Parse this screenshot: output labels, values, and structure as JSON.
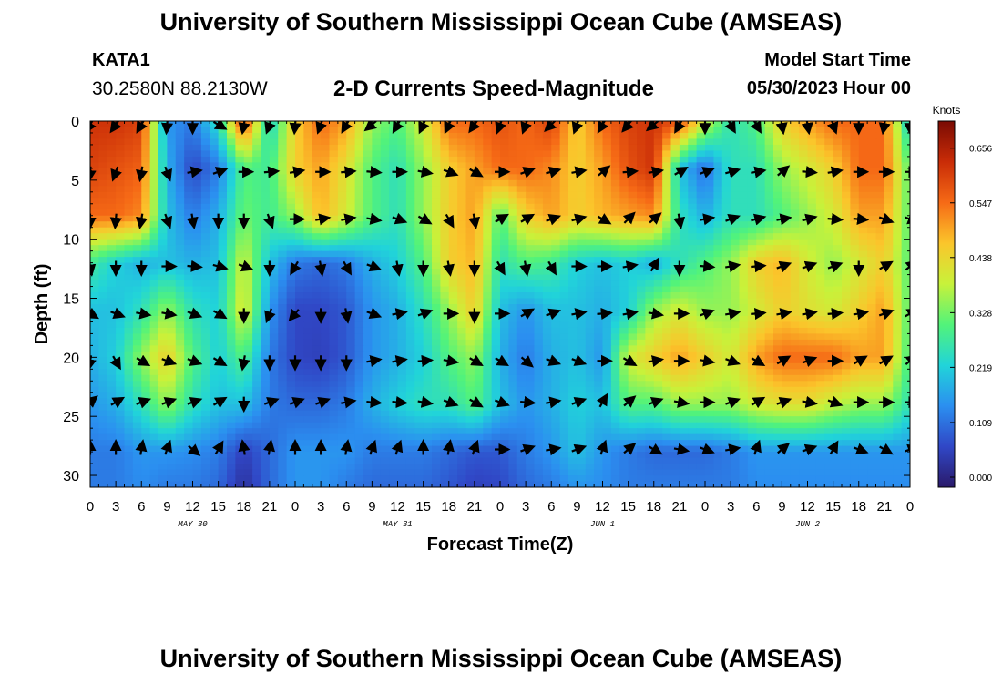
{
  "header": {
    "title": "University of Southern Mississippi Ocean Cube (AMSEAS)",
    "station_id": "KATA1",
    "coordinates": "30.2580N  88.2130W",
    "subtitle": "2-D Currents Speed-Magnitude",
    "model_start_label": "Model Start Time",
    "model_start_value": "05/30/2023 Hour 00"
  },
  "footer": {
    "title": "University of Southern Mississippi Ocean Cube (AMSEAS)"
  },
  "chart_data": {
    "type": "heatmap",
    "title": "2-D Currents Speed-Magnitude",
    "xlabel": "Forecast Time(Z)",
    "ylabel": "Depth (ft)",
    "xlim": [
      0,
      96
    ],
    "ylim": [
      0,
      31
    ],
    "x_tick_values": [
      0,
      3,
      6,
      9,
      12,
      15,
      18,
      21,
      24,
      27,
      30,
      33,
      36,
      39,
      42,
      45,
      48,
      51,
      54,
      57,
      60,
      63,
      66,
      69,
      72,
      75,
      78,
      81,
      84,
      87,
      90,
      93,
      96
    ],
    "x_tick_labels": [
      "0",
      "3",
      "6",
      "9",
      "12",
      "15",
      "18",
      "21",
      "0",
      "3",
      "6",
      "9",
      "12",
      "15",
      "18",
      "21",
      "0",
      "3",
      "6",
      "9",
      "12",
      "15",
      "18",
      "21",
      "0",
      "3",
      "6",
      "9",
      "12",
      "15",
      "18",
      "21",
      "0"
    ],
    "date_labels": [
      {
        "hour": 12,
        "text": "MAY 30"
      },
      {
        "hour": 36,
        "text": "MAY 31"
      },
      {
        "hour": 60,
        "text": "JUN 1"
      },
      {
        "hour": 84,
        "text": "JUN 2"
      }
    ],
    "y_tick_values": [
      0,
      5,
      10,
      15,
      20,
      25,
      30
    ],
    "y_tick_labels": [
      "0",
      "5",
      "10",
      "15",
      "20",
      "25",
      "30"
    ],
    "colorbar": {
      "unit": "Knots",
      "min": -0.02,
      "max": 0.71,
      "ticks": [
        0.0,
        0.109,
        0.219,
        0.328,
        0.438,
        0.547,
        0.656
      ],
      "tick_labels": [
        "0.000",
        "0.109",
        "0.219",
        "0.328",
        "0.438",
        "0.547",
        "0.656"
      ]
    },
    "colors": [
      "#2a1a6a",
      "#3047c6",
      "#2b8ff0",
      "#21d4d9",
      "#52f37a",
      "#c8f23a",
      "#fbc52b",
      "#f66a16",
      "#c92c07",
      "#7a0b03"
    ],
    "speed_grid": {
      "hours": [
        0,
        3,
        6,
        9,
        12,
        15,
        18,
        21,
        24,
        27,
        30,
        33,
        36,
        39,
        42,
        45,
        48,
        51,
        54,
        57,
        60,
        63,
        66,
        69,
        72,
        75,
        78,
        81,
        84,
        87,
        90,
        93,
        96
      ],
      "depths": [
        0,
        4,
        8,
        12,
        16,
        20,
        24,
        28,
        31
      ],
      "values": [
        [
          0.62,
          0.62,
          0.6,
          0.15,
          0.12,
          0.25,
          0.6,
          0.22,
          0.45,
          0.55,
          0.5,
          0.35,
          0.3,
          0.4,
          0.55,
          0.55,
          0.58,
          0.55,
          0.6,
          0.45,
          0.55,
          0.6,
          0.62,
          0.58,
          0.4,
          0.25,
          0.3,
          0.45,
          0.5,
          0.55,
          0.55,
          0.55,
          0.2
        ],
        [
          0.6,
          0.58,
          0.56,
          0.18,
          0.06,
          0.12,
          0.3,
          0.28,
          0.45,
          0.5,
          0.42,
          0.3,
          0.25,
          0.35,
          0.45,
          0.5,
          0.55,
          0.55,
          0.52,
          0.45,
          0.5,
          0.58,
          0.62,
          0.2,
          0.1,
          0.25,
          0.25,
          0.35,
          0.4,
          0.45,
          0.55,
          0.55,
          0.3
        ],
        [
          0.55,
          0.55,
          0.52,
          0.2,
          0.12,
          0.18,
          0.32,
          0.28,
          0.35,
          0.48,
          0.4,
          0.3,
          0.25,
          0.35,
          0.45,
          0.5,
          0.3,
          0.45,
          0.5,
          0.45,
          0.48,
          0.5,
          0.52,
          0.25,
          0.18,
          0.25,
          0.25,
          0.3,
          0.35,
          0.4,
          0.5,
          0.5,
          0.3
        ],
        [
          0.28,
          0.22,
          0.18,
          0.2,
          0.18,
          0.2,
          0.4,
          0.2,
          0.12,
          0.1,
          0.12,
          0.18,
          0.22,
          0.3,
          0.45,
          0.48,
          0.25,
          0.3,
          0.28,
          0.22,
          0.2,
          0.22,
          0.18,
          0.25,
          0.3,
          0.35,
          0.45,
          0.48,
          0.4,
          0.35,
          0.4,
          0.45,
          0.3
        ],
        [
          0.2,
          0.2,
          0.25,
          0.35,
          0.25,
          0.22,
          0.42,
          0.15,
          0.06,
          0.06,
          0.08,
          0.15,
          0.18,
          0.25,
          0.35,
          0.45,
          0.2,
          0.15,
          0.2,
          0.2,
          0.18,
          0.22,
          0.35,
          0.4,
          0.35,
          0.35,
          0.4,
          0.45,
          0.42,
          0.4,
          0.45,
          0.5,
          0.3
        ],
        [
          0.18,
          0.22,
          0.35,
          0.45,
          0.3,
          0.22,
          0.3,
          0.12,
          0.06,
          0.05,
          0.08,
          0.15,
          0.18,
          0.22,
          0.3,
          0.35,
          0.18,
          0.12,
          0.18,
          0.2,
          0.15,
          0.4,
          0.45,
          0.5,
          0.45,
          0.4,
          0.5,
          0.55,
          0.55,
          0.55,
          0.5,
          0.5,
          0.28
        ],
        [
          0.15,
          0.18,
          0.25,
          0.35,
          0.25,
          0.2,
          0.2,
          0.12,
          0.1,
          0.1,
          0.12,
          0.18,
          0.22,
          0.25,
          0.25,
          0.3,
          0.2,
          0.15,
          0.18,
          0.22,
          0.2,
          0.3,
          0.3,
          0.35,
          0.35,
          0.35,
          0.4,
          0.42,
          0.42,
          0.38,
          0.35,
          0.35,
          0.25
        ],
        [
          0.12,
          0.12,
          0.15,
          0.15,
          0.14,
          0.12,
          0.05,
          0.1,
          0.15,
          0.15,
          0.15,
          0.12,
          0.12,
          0.12,
          0.1,
          0.08,
          0.08,
          0.12,
          0.15,
          0.2,
          0.15,
          0.12,
          0.1,
          0.1,
          0.1,
          0.12,
          0.15,
          0.15,
          0.15,
          0.15,
          0.15,
          0.15,
          0.15
        ],
        [
          0.12,
          0.12,
          0.14,
          0.12,
          0.12,
          0.1,
          0.02,
          0.1,
          0.15,
          0.15,
          0.12,
          0.1,
          0.1,
          0.1,
          0.08,
          0.05,
          0.06,
          0.1,
          0.12,
          0.15,
          0.14,
          0.12,
          0.12,
          0.12,
          0.12,
          0.12,
          0.14,
          0.14,
          0.14,
          0.14,
          0.14,
          0.14,
          0.14
        ]
      ]
    },
    "vector_rows": [
      {
        "depth": 0.3,
        "angles": [
          120,
          125,
          120,
          95,
          90,
          30,
          100,
          110,
          95,
          110,
          120,
          140,
          120,
          115,
          115,
          125,
          110,
          110,
          135,
          110,
          120,
          130,
          140,
          120,
          90,
          60,
          60,
          80,
          80,
          70,
          90,
          100,
          90
        ]
      },
      {
        "depth": 4.3,
        "angles": [
          95,
          110,
          100,
          70,
          -10,
          -20,
          0,
          -5,
          -10,
          0,
          -5,
          5,
          0,
          10,
          20,
          30,
          0,
          -20,
          -15,
          -10,
          -40,
          -5,
          -10,
          -30,
          -20,
          -15,
          -10,
          -40,
          5,
          -10,
          0,
          0,
          0
        ]
      },
      {
        "depth": 8.3,
        "angles": [
          90,
          95,
          100,
          70,
          80,
          90,
          90,
          70,
          0,
          -10,
          -10,
          10,
          20,
          30,
          60,
          80,
          -30,
          -30,
          -20,
          -15,
          30,
          -45,
          -40,
          80,
          -10,
          -20,
          -15,
          -10,
          -15,
          5,
          5,
          20,
          20
        ]
      },
      {
        "depth": 12.3,
        "angles": [
          80,
          90,
          90,
          0,
          5,
          15,
          20,
          90,
          120,
          80,
          60,
          20,
          80,
          90,
          80,
          90,
          60,
          80,
          60,
          0,
          0,
          -10,
          -60,
          90,
          5,
          -10,
          -5,
          -20,
          -20,
          -20,
          90,
          -30,
          -40
        ]
      },
      {
        "depth": 16.3,
        "angles": [
          30,
          20,
          10,
          10,
          20,
          30,
          90,
          110,
          130,
          90,
          80,
          20,
          -10,
          -20,
          0,
          90,
          0,
          -30,
          -20,
          -10,
          -5,
          -10,
          10,
          0,
          -20,
          -10,
          -5,
          -10,
          -10,
          -5,
          -10,
          -20,
          -30
        ]
      },
      {
        "depth": 20.3,
        "angles": [
          100,
          60,
          30,
          20,
          20,
          30,
          100,
          90,
          90,
          90,
          90,
          -10,
          -10,
          -5,
          10,
          30,
          30,
          40,
          20,
          20,
          0,
          30,
          -10,
          0,
          10,
          20,
          30,
          -30,
          -20,
          0,
          -30,
          -30,
          -40
        ]
      },
      {
        "depth": 23.8,
        "angles": [
          -40,
          -30,
          -20,
          -20,
          -20,
          -30,
          90,
          -20,
          -20,
          -20,
          -10,
          5,
          5,
          10,
          20,
          30,
          20,
          5,
          -10,
          -20,
          -60,
          -40,
          -20,
          10,
          0,
          -20,
          -30,
          -20,
          10,
          20,
          0,
          0,
          0
        ]
      },
      {
        "depth": 27.8,
        "angles": [
          -90,
          -90,
          -80,
          -70,
          40,
          -60,
          -100,
          -80,
          -90,
          -90,
          -80,
          -70,
          -70,
          -90,
          -80,
          -70,
          0,
          -20,
          -10,
          -20,
          -70,
          -40,
          30,
          10,
          20,
          -10,
          -70,
          -40,
          -20,
          -60,
          20,
          30,
          -20
        ]
      }
    ]
  }
}
